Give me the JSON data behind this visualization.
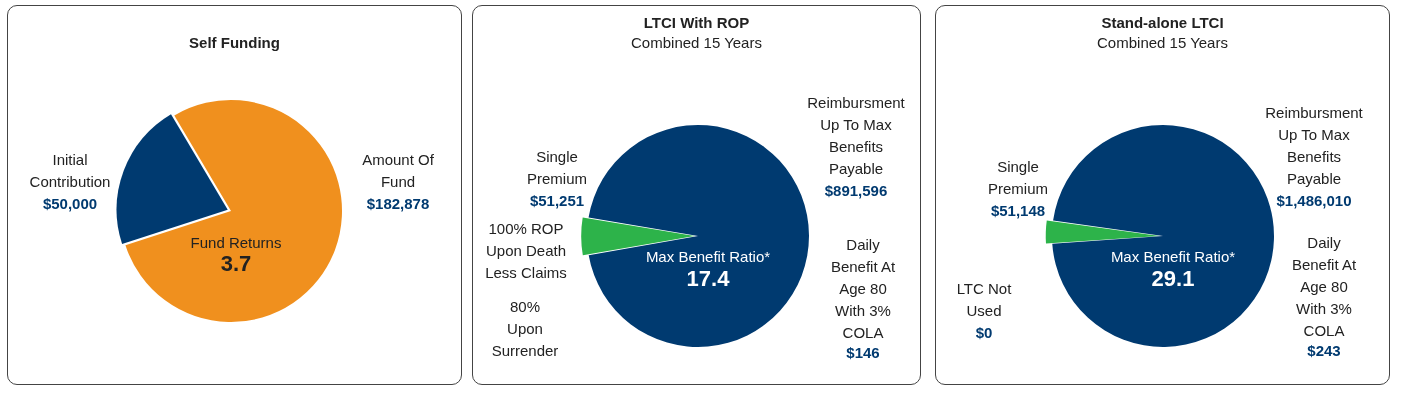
{
  "chart_data": [
    {
      "type": "pie",
      "title": "Self Funding",
      "categories": [
        "Initial Contribution",
        "Amount Of Fund"
      ],
      "values": [
        50000,
        182878
      ],
      "value_labels": [
        "$50,000",
        "$182,878"
      ],
      "colors": [
        "#003a70",
        "#f0901e"
      ],
      "annotations": [
        "Fund Returns",
        "3.7"
      ]
    },
    {
      "type": "pie",
      "title": "LTCI With ROP",
      "subtitle": "Combined 15 Years",
      "categories": [
        "Single Premium",
        "Reimbursment Up To Max Benefits Payable"
      ],
      "values": [
        51251,
        891596
      ],
      "value_labels": [
        "$51,251",
        "$891,596"
      ],
      "colors": [
        "#2db34a",
        "#003a70"
      ],
      "annotations": [
        "100% ROP Upon Death Less Claims",
        "80% Upon Surrender",
        "Daily Benefit At Age 80 With 3% COLA",
        "$146",
        "Max Benefit Ratio*",
        "17.4"
      ]
    },
    {
      "type": "pie",
      "title": "Stand-alone LTCI",
      "subtitle": "Combined 15 Years",
      "categories": [
        "Single Premium",
        "Reimbursment Up To Max Benefits Payable"
      ],
      "values": [
        51148,
        1486010
      ],
      "value_labels": [
        "$51,148",
        "$1,486,010"
      ],
      "colors": [
        "#2db34a",
        "#003a70"
      ],
      "annotations": [
        "LTC Not Used",
        "$0",
        "Daily Benefit At Age 80 With 3% COLA",
        "$243",
        "Max Benefit Ratio*",
        "29.1"
      ]
    }
  ]
}
